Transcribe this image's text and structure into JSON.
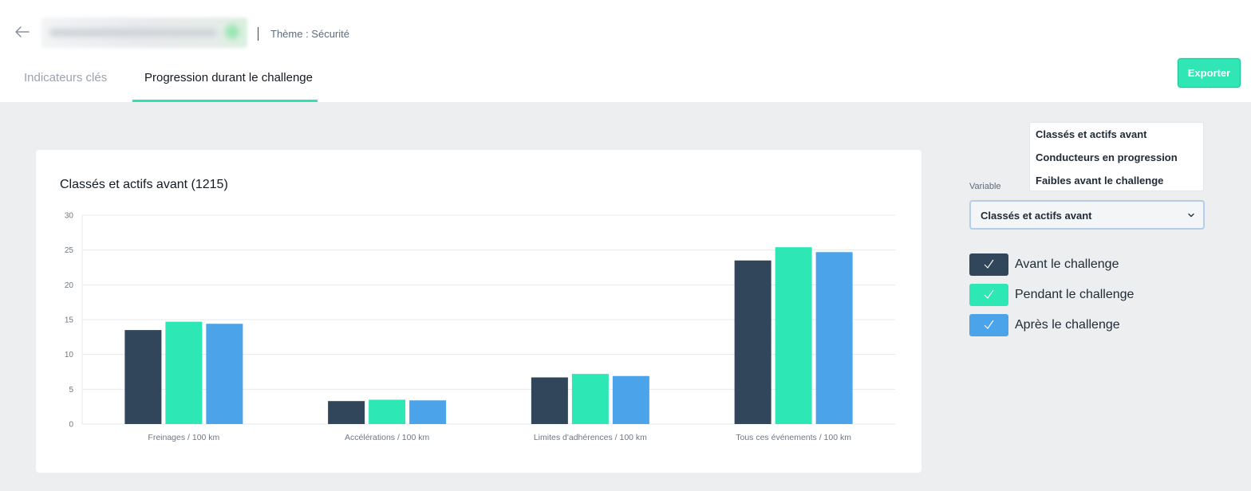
{
  "header": {
    "theme_label": "Thème : Sécurité",
    "tabs": [
      {
        "label": "Indicateurs clés",
        "active": false
      },
      {
        "label": "Progression durant le challenge",
        "active": true
      }
    ],
    "export_label": "Exporter"
  },
  "colors": {
    "before": "#31465b",
    "during": "#2de8b4",
    "after": "#4ba3ea",
    "accent": "#2fe6b4"
  },
  "chart_data": {
    "type": "bar",
    "title": "Classés et actifs avant (1215)",
    "categories": [
      "Freinages / 100 km",
      "Accélérations / 100 km",
      "Limites d'adhérences / 100 km",
      "Tous ces événements / 100 km"
    ],
    "series": [
      {
        "name": "Avant le challenge",
        "values": [
          13.5,
          3.3,
          6.7,
          23.5
        ]
      },
      {
        "name": "Pendant le challenge",
        "values": [
          14.7,
          3.5,
          7.2,
          25.4
        ]
      },
      {
        "name": "Après le challenge",
        "values": [
          14.4,
          3.4,
          6.9,
          24.7
        ]
      }
    ],
    "ylim": [
      0,
      30
    ],
    "yticks": [
      "0",
      "5",
      "10",
      "15",
      "20",
      "25",
      "30"
    ],
    "grid": true
  },
  "controls": {
    "variable_label": "Variable",
    "selected": "Classés et actifs avant",
    "options": [
      "Classés et actifs avant",
      "Conducteurs en progression",
      "Faibles avant le challenge"
    ],
    "legend": [
      {
        "label": "Avant le challenge",
        "checked": true
      },
      {
        "label": "Pendant le challenge",
        "checked": true
      },
      {
        "label": "Après le challenge",
        "checked": true
      }
    ]
  }
}
